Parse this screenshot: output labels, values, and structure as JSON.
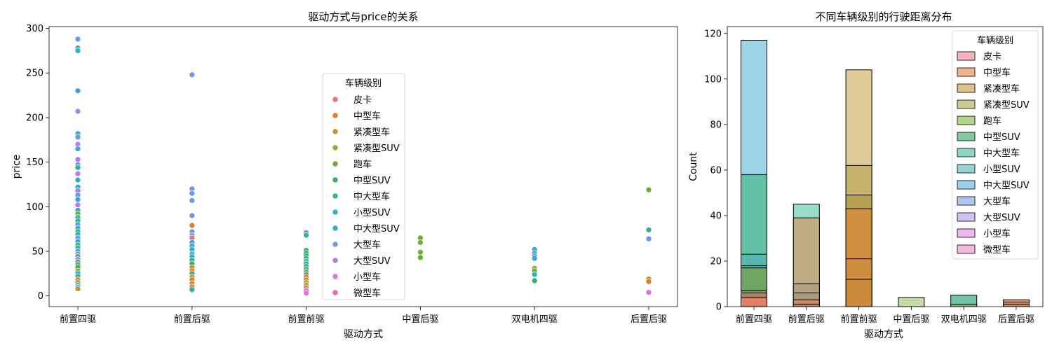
{
  "chart_data": [
    {
      "type": "scatter",
      "title": "驱动方式与price的关系",
      "xlabel": "驱动方式",
      "ylabel": "price",
      "categories": [
        "前置四驱",
        "前置后驱",
        "前置前驱",
        "中置后驱",
        "双电机四驱",
        "后置后驱"
      ],
      "yticks": [
        0,
        50,
        100,
        150,
        200,
        250,
        300
      ],
      "ylim": [
        -12,
        302
      ],
      "grid": false,
      "legend": {
        "title": "车辆级别",
        "placement": "center",
        "entries": [
          {
            "name": "皮卡",
            "color": "#e8707a"
          },
          {
            "name": "中型车",
            "color": "#e07b2e"
          },
          {
            "name": "紧凑型车",
            "color": "#c8952c"
          },
          {
            "name": "紧凑型SUV",
            "color": "#a0a034"
          },
          {
            "name": "跑车",
            "color": "#6fab35"
          },
          {
            "name": "中型SUV",
            "color": "#33b06a"
          },
          {
            "name": "中大型车",
            "color": "#33b09a"
          },
          {
            "name": "小型SUV",
            "color": "#33b3bc"
          },
          {
            "name": "中大型SUV",
            "color": "#3aa5d8"
          },
          {
            "name": "大型车",
            "color": "#6a98ee"
          },
          {
            "name": "大型SUV",
            "color": "#b07ef2"
          },
          {
            "name": "小型车",
            "color": "#e66ee0"
          },
          {
            "name": "微型车",
            "color": "#f060b4"
          }
        ]
      },
      "points": [
        {
          "x": "前置四驱",
          "y": 288,
          "level": "大型车"
        },
        {
          "x": "前置四驱",
          "y": 278,
          "level": "中大型SUV"
        },
        {
          "x": "前置四驱",
          "y": 275,
          "level": "小型SUV"
        },
        {
          "x": "前置四驱",
          "y": 230,
          "level": "中大型SUV"
        },
        {
          "x": "前置四驱",
          "y": 207,
          "level": "大型SUV"
        },
        {
          "x": "前置四驱",
          "y": 182,
          "level": "小型SUV"
        },
        {
          "x": "前置四驱",
          "y": 178,
          "level": "大型车"
        },
        {
          "x": "前置四驱",
          "y": 170,
          "level": "大型SUV"
        },
        {
          "x": "前置四驱",
          "y": 165,
          "level": "中大型SUV"
        },
        {
          "x": "前置四驱",
          "y": 153,
          "level": "大型SUV"
        },
        {
          "x": "前置四驱",
          "y": 147,
          "level": "大型车"
        },
        {
          "x": "前置四驱",
          "y": 144,
          "level": "中大型车"
        },
        {
          "x": "前置四驱",
          "y": 137,
          "level": "大型SUV"
        },
        {
          "x": "前置四驱",
          "y": 130,
          "level": "中大型SUV"
        },
        {
          "x": "前置四驱",
          "y": 122,
          "level": "小型SUV"
        },
        {
          "x": "前置四驱",
          "y": 118,
          "level": "大型SUV"
        },
        {
          "x": "前置四驱",
          "y": 113,
          "level": "大型车"
        },
        {
          "x": "前置四驱",
          "y": 108,
          "level": "中大型SUV"
        },
        {
          "x": "前置四驱",
          "y": 102,
          "level": "大型SUV"
        },
        {
          "x": "前置四驱",
          "y": 96,
          "level": "中大型SUV"
        },
        {
          "x": "前置四驱",
          "y": 92,
          "level": "跑车"
        },
        {
          "x": "前置四驱",
          "y": 88,
          "level": "小型SUV"
        },
        {
          "x": "前置四驱",
          "y": 84,
          "level": "中大型车"
        },
        {
          "x": "前置四驱",
          "y": 80,
          "level": "大型车"
        },
        {
          "x": "前置四驱",
          "y": 76,
          "level": "中大型SUV"
        },
        {
          "x": "前置四驱",
          "y": 72,
          "level": "中型SUV"
        },
        {
          "x": "前置四驱",
          "y": 69,
          "level": "小型SUV"
        },
        {
          "x": "前置四驱",
          "y": 65,
          "level": "大型车"
        },
        {
          "x": "前置四驱",
          "y": 61,
          "level": "中大型SUV"
        },
        {
          "x": "前置四驱",
          "y": 57,
          "level": "中型SUV"
        },
        {
          "x": "前置四驱",
          "y": 54,
          "level": "小型SUV"
        },
        {
          "x": "前置四驱",
          "y": 50,
          "level": "中大型车"
        },
        {
          "x": "前置四驱",
          "y": 47,
          "level": "大型SUV"
        },
        {
          "x": "前置四驱",
          "y": 44,
          "level": "中型SUV"
        },
        {
          "x": "前置四驱",
          "y": 41,
          "level": "大型SUV"
        },
        {
          "x": "前置四驱",
          "y": 38,
          "level": "小型SUV"
        },
        {
          "x": "前置四驱",
          "y": 35,
          "level": "跑车"
        },
        {
          "x": "前置四驱",
          "y": 32,
          "level": "中型SUV"
        },
        {
          "x": "前置四驱",
          "y": 28,
          "level": "紧凑型SUV"
        },
        {
          "x": "前置四驱",
          "y": 25,
          "level": "中大型车"
        },
        {
          "x": "前置四驱",
          "y": 22,
          "level": "小型SUV"
        },
        {
          "x": "前置四驱",
          "y": 18,
          "level": "中型车"
        },
        {
          "x": "前置四驱",
          "y": 15,
          "level": "紧凑型SUV"
        },
        {
          "x": "前置四驱",
          "y": 12,
          "level": "中大型SUV"
        },
        {
          "x": "前置四驱",
          "y": 10,
          "level": "小型SUV"
        },
        {
          "x": "前置四驱",
          "y": 8,
          "level": "紧凑型车"
        },
        {
          "x": "前置后驱",
          "y": 248,
          "level": "大型车"
        },
        {
          "x": "前置后驱",
          "y": 120,
          "level": "大型车"
        },
        {
          "x": "前置后驱",
          "y": 115,
          "level": "大型车"
        },
        {
          "x": "前置后驱",
          "y": 107,
          "level": "大型车"
        },
        {
          "x": "前置后驱",
          "y": 90,
          "level": "大型车"
        },
        {
          "x": "前置后驱",
          "y": 79,
          "level": "中型车"
        },
        {
          "x": "前置后驱",
          "y": 72,
          "level": "大型车"
        },
        {
          "x": "前置后驱",
          "y": 68,
          "level": "大型车"
        },
        {
          "x": "前置后驱",
          "y": 65,
          "level": "皮卡"
        },
        {
          "x": "前置后驱",
          "y": 60,
          "level": "中大型SUV"
        },
        {
          "x": "前置后驱",
          "y": 56,
          "level": "中大型SUV"
        },
        {
          "x": "前置后驱",
          "y": 52,
          "level": "小型SUV"
        },
        {
          "x": "前置后驱",
          "y": 47,
          "level": "中大型SUV"
        },
        {
          "x": "前置后驱",
          "y": 44,
          "level": "小型SUV"
        },
        {
          "x": "前置后驱",
          "y": 40,
          "level": "中大型车"
        },
        {
          "x": "前置后驱",
          "y": 36,
          "level": "中型SUV"
        },
        {
          "x": "前置后驱",
          "y": 32,
          "level": "紧凑型车"
        },
        {
          "x": "前置后驱",
          "y": 28,
          "level": "中型车"
        },
        {
          "x": "前置后驱",
          "y": 25,
          "level": "中大型车"
        },
        {
          "x": "前置后驱",
          "y": 21,
          "level": "紧凑型车"
        },
        {
          "x": "前置后驱",
          "y": 18,
          "level": "中型车"
        },
        {
          "x": "前置后驱",
          "y": 14,
          "level": "紧凑型车"
        },
        {
          "x": "前置后驱",
          "y": 10,
          "level": "中型车"
        },
        {
          "x": "前置后驱",
          "y": 7,
          "level": "中大型车"
        },
        {
          "x": "前置前驱",
          "y": 71,
          "level": "大型车"
        },
        {
          "x": "前置前驱",
          "y": 68,
          "level": "中大型车"
        },
        {
          "x": "前置前驱",
          "y": 51,
          "level": "中型SUV"
        },
        {
          "x": "前置前驱",
          "y": 48,
          "level": "中型SUV"
        },
        {
          "x": "前置前驱",
          "y": 45,
          "level": "中大型车"
        },
        {
          "x": "前置前驱",
          "y": 42,
          "level": "中型SUV"
        },
        {
          "x": "前置前驱",
          "y": 39,
          "level": "小型SUV"
        },
        {
          "x": "前置前驱",
          "y": 36,
          "level": "中大型车"
        },
        {
          "x": "前置前驱",
          "y": 33,
          "level": "中型SUV"
        },
        {
          "x": "前置前驱",
          "y": 30,
          "level": "小型SUV"
        },
        {
          "x": "前置前驱",
          "y": 27,
          "level": "紧凑型SUV"
        },
        {
          "x": "前置前驱",
          "y": 24,
          "level": "中大型车"
        },
        {
          "x": "前置前驱",
          "y": 21,
          "level": "中型车"
        },
        {
          "x": "前置前驱",
          "y": 18,
          "level": "中型车"
        },
        {
          "x": "前置前驱",
          "y": 15,
          "level": "紧凑型车"
        },
        {
          "x": "前置前驱",
          "y": 12,
          "level": "紧凑型SUV"
        },
        {
          "x": "前置前驱",
          "y": 9,
          "level": "紧凑型车"
        },
        {
          "x": "前置前驱",
          "y": 6,
          "level": "小型车"
        },
        {
          "x": "前置前驱",
          "y": 3,
          "level": "小型车"
        },
        {
          "x": "中置后驱",
          "y": 65,
          "level": "跑车"
        },
        {
          "x": "中置后驱",
          "y": 60,
          "level": "跑车"
        },
        {
          "x": "中置后驱",
          "y": 49,
          "level": "跑车"
        },
        {
          "x": "中置后驱",
          "y": 43,
          "level": "跑车"
        },
        {
          "x": "双电机四驱",
          "y": 52,
          "level": "中大型SUV"
        },
        {
          "x": "双电机四驱",
          "y": 48,
          "level": "小型SUV"
        },
        {
          "x": "双电机四驱",
          "y": 45,
          "level": "大型车"
        },
        {
          "x": "双电机四驱",
          "y": 42,
          "level": "中大型SUV"
        },
        {
          "x": "双电机四驱",
          "y": 31,
          "level": "紧凑型SUV"
        },
        {
          "x": "双电机四驱",
          "y": 28,
          "level": "跑车"
        },
        {
          "x": "双电机四驱",
          "y": 24,
          "level": "小型SUV"
        },
        {
          "x": "双电机四驱",
          "y": 17,
          "level": "中型SUV"
        },
        {
          "x": "后置后驱",
          "y": 119,
          "level": "跑车"
        },
        {
          "x": "后置后驱",
          "y": 74,
          "level": "中大型车"
        },
        {
          "x": "后置后驱",
          "y": 64,
          "level": "大型车"
        },
        {
          "x": "后置后驱",
          "y": 19,
          "level": "紧凑型车"
        },
        {
          "x": "后置后驱",
          "y": 16,
          "level": "中型车"
        },
        {
          "x": "后置后驱",
          "y": 4,
          "level": "小型车"
        }
      ]
    },
    {
      "type": "bar",
      "title": "不同车辆级别的行驶距离分布",
      "xlabel": "驱动方式",
      "ylabel": "Count",
      "categories": [
        "前置四驱",
        "前置后驱",
        "前置前驱",
        "中置后驱",
        "双电机四驱",
        "后置后驱"
      ],
      "yticks": [
        0,
        20,
        40,
        60,
        80,
        100,
        120
      ],
      "ylim": [
        0,
        123
      ],
      "grid": false,
      "legend": {
        "title": "车辆级别",
        "placement": "upper right",
        "entries": [
          {
            "name": "皮卡",
            "color": "#f4b4c0"
          },
          {
            "name": "中型车",
            "color": "#f1b48a"
          },
          {
            "name": "紧凑型车",
            "color": "#dfbf88"
          },
          {
            "name": "紧凑型SUV",
            "color": "#cbcb8e"
          },
          {
            "name": "跑车",
            "color": "#b2d48b"
          },
          {
            "name": "中型SUV",
            "color": "#84c8a2"
          },
          {
            "name": "中大型车",
            "color": "#8ed4c4"
          },
          {
            "name": "小型SUV",
            "color": "#94d4d4"
          },
          {
            "name": "中大型SUV",
            "color": "#9ad2ea"
          },
          {
            "name": "大型车",
            "color": "#aec6f2"
          },
          {
            "name": "大型SUV",
            "color": "#d2c2f4"
          },
          {
            "name": "小型车",
            "color": "#f0b4ee"
          },
          {
            "name": "微型车",
            "color": "#f4b8dc"
          }
        ]
      },
      "bars": [
        {
          "x": "前置四驱",
          "value": 117,
          "fill": "#9cd3e6",
          "level": "中大型SUV"
        },
        {
          "x": "前置四驱",
          "value": 58,
          "fill": "#62c0a4",
          "level": "中型SUV"
        },
        {
          "x": "前置四驱",
          "value": 23,
          "fill": "#58b8ae",
          "level": "中大型车"
        },
        {
          "x": "前置四驱",
          "value": 18,
          "fill": "#4fae9e",
          "level": "小型SUV"
        },
        {
          "x": "前置四驱",
          "value": 17,
          "fill": "#6fa662",
          "level": "跑车"
        },
        {
          "x": "前置四驱",
          "value": 7,
          "fill": "#8d9a55",
          "level": "紧凑型SUV"
        },
        {
          "x": "前置四驱",
          "value": 6,
          "fill": "#b5805a",
          "level": "紧凑型车"
        },
        {
          "x": "前置四驱",
          "value": 4,
          "fill": "#e28066",
          "level": "中型车"
        },
        {
          "x": "前置后驱",
          "value": 45,
          "fill": "#98dccc",
          "level": "中大型车"
        },
        {
          "x": "前置后驱",
          "value": 39,
          "fill": "#c0ac85",
          "level": "紧凑型车"
        },
        {
          "x": "前置后驱",
          "value": 10,
          "fill": "#b3a07e",
          "level": "中型SUV"
        },
        {
          "x": "前置后驱",
          "value": 6,
          "fill": "#ad9a78",
          "level": "跑车"
        },
        {
          "x": "前置后驱",
          "value": 3,
          "fill": "#c98a63",
          "level": "中型车"
        },
        {
          "x": "前置后驱",
          "value": 1,
          "fill": "#cf7c5a",
          "level": "皮卡"
        },
        {
          "x": "前置前驱",
          "value": 104,
          "fill": "#e0cc98",
          "level": "紧凑型车"
        },
        {
          "x": "前置前驱",
          "value": 62,
          "fill": "#c7b26b",
          "level": "紧凑型SUV"
        },
        {
          "x": "前置前驱",
          "value": 49,
          "fill": "#b9a152",
          "level": "中型SUV"
        },
        {
          "x": "前置前驱",
          "value": 43,
          "fill": "#d09040",
          "level": "中型车"
        },
        {
          "x": "前置前驱",
          "value": 21,
          "fill": "#cd8d3c",
          "level": "小型车"
        },
        {
          "x": "前置前驱",
          "value": 12,
          "fill": "#ca8a3a",
          "level": "微型车"
        },
        {
          "x": "中置后驱",
          "value": 4,
          "fill": "#c2dca4",
          "level": "跑车"
        },
        {
          "x": "双电机四驱",
          "value": 5,
          "fill": "#6fc6a6",
          "level": "中型SUV"
        },
        {
          "x": "双电机四驱",
          "value": 1,
          "fill": "#86b978",
          "level": "紧凑型SUV"
        },
        {
          "x": "后置后驱",
          "value": 3,
          "fill": "#e3a07c",
          "level": "中型车"
        },
        {
          "x": "后置后驱",
          "value": 2,
          "fill": "#d98e66",
          "level": "紧凑型车"
        },
        {
          "x": "后置后驱",
          "value": 1,
          "fill": "#d5865c",
          "level": "跑车"
        }
      ]
    }
  ]
}
